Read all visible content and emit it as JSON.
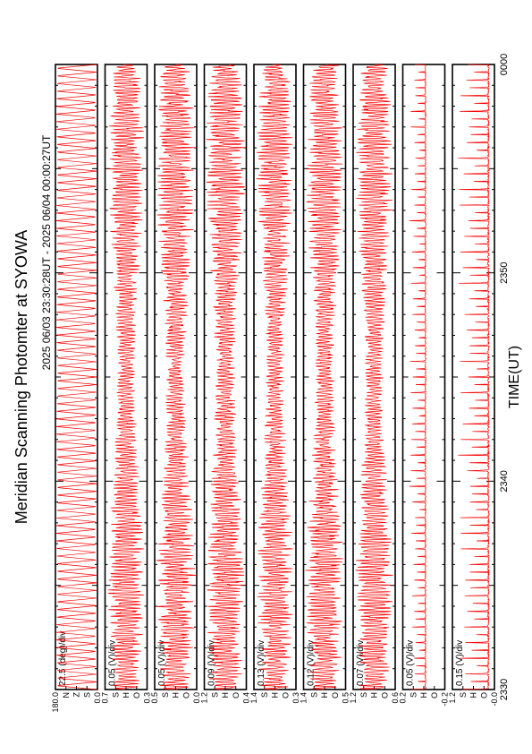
{
  "title": "Meridian Scanning Photomter at SYOWA",
  "time_range": "2025 06/03 23:30:28UT - 2025 06/04 00:00:27UT",
  "xlabel": "TIME(UT)",
  "colors": {
    "trace": "#ff0000",
    "axis": "#000000",
    "background": "#ffffff"
  },
  "chart_data": [
    {
      "type": "line",
      "panel": "scan-angle",
      "scale_label": "22.5 (deg)/div",
      "yticks": [
        "0.0",
        "S",
        "Z",
        "N",
        "180.0"
      ],
      "ylim": [
        0,
        180
      ],
      "x": [
        2330,
        2340,
        2350,
        2400
      ],
      "xticks": [
        "2330",
        "2340",
        "2350",
        "0000"
      ],
      "xlim": [
        2330,
        2400
      ],
      "series": [
        {
          "style": "sawtooth",
          "base": 90,
          "amp": 88,
          "cycles": 82,
          "noise": 0.0
        }
      ]
    },
    {
      "type": "line",
      "panel": "channel-1",
      "scale_label": "0.05 (V)/div",
      "yticks": [
        "0.3",
        "O",
        "H",
        "S",
        "0.7"
      ],
      "ylim": [
        0.3,
        0.7
      ],
      "xticks": [
        "2330",
        "2340",
        "2350",
        "0000"
      ],
      "xlim": [
        2330,
        2400
      ],
      "series": [
        {
          "style": "spiky",
          "base": 0.5,
          "amp": 0.17,
          "cycles": 190,
          "noise": 0.35
        }
      ]
    },
    {
      "type": "line",
      "panel": "channel-2",
      "scale_label": "0.05 (V)/div",
      "yticks": [
        "0.0",
        "O",
        "H",
        "S",
        "0.5"
      ],
      "ylim": [
        0.0,
        0.5
      ],
      "xticks": [
        "2330",
        "2340",
        "2350",
        "0000"
      ],
      "xlim": [
        2330,
        2400
      ],
      "series": [
        {
          "style": "spiky",
          "base": 0.25,
          "amp": 0.22,
          "cycles": 190,
          "noise": 0.4
        }
      ]
    },
    {
      "type": "line",
      "panel": "channel-3",
      "scale_label": "0.09 (V)/div",
      "yticks": [
        "0.4",
        "O",
        "H",
        "S",
        "1.2"
      ],
      "ylim": [
        0.4,
        1.2
      ],
      "xticks": [
        "2330",
        "2340",
        "2350",
        "0000"
      ],
      "xlim": [
        2330,
        2400
      ],
      "series": [
        {
          "style": "spiky",
          "base": 0.8,
          "amp": 0.36,
          "cycles": 190,
          "noise": 0.4
        }
      ]
    },
    {
      "type": "line",
      "panel": "channel-4",
      "scale_label": "0.13 (V)/div",
      "yticks": [
        "0.3",
        "O",
        "H",
        "S",
        "1.4"
      ],
      "ylim": [
        0.3,
        1.4
      ],
      "xticks": [
        "2330",
        "2340",
        "2350",
        "0000"
      ],
      "xlim": [
        2330,
        2400
      ],
      "series": [
        {
          "style": "spiky",
          "base": 0.85,
          "amp": 0.45,
          "cycles": 190,
          "noise": 0.4
        }
      ]
    },
    {
      "type": "line",
      "panel": "channel-5",
      "scale_label": "0.12 (V)/div",
      "yticks": [
        "0.5",
        "O",
        "H",
        "S",
        "1.4"
      ],
      "ylim": [
        0.5,
        1.4
      ],
      "xticks": [
        "2330",
        "2340",
        "2350",
        "0000"
      ],
      "xlim": [
        2330,
        2400
      ],
      "series": [
        {
          "style": "spiky",
          "base": 0.95,
          "amp": 0.38,
          "cycles": 190,
          "noise": 0.4
        }
      ]
    },
    {
      "type": "line",
      "panel": "channel-6",
      "scale_label": "0.07 (V)/div",
      "yticks": [
        "0.6",
        "O",
        "H",
        "S",
        "1.2"
      ],
      "ylim": [
        0.6,
        1.2
      ],
      "xticks": [
        "2330",
        "2340",
        "2350",
        "0000"
      ],
      "xlim": [
        2330,
        2400
      ],
      "series": [
        {
          "style": "spiky",
          "base": 0.9,
          "amp": 0.26,
          "cycles": 190,
          "noise": 0.35
        }
      ]
    },
    {
      "type": "line",
      "panel": "channel-7",
      "scale_label": "0.05 (V)/div",
      "yticks": [
        "-0.2",
        "O",
        "H",
        "S",
        "0.2"
      ],
      "ylim": [
        -0.2,
        0.2
      ],
      "xticks": [
        "2330",
        "2340",
        "2350",
        "0000"
      ],
      "xlim": [
        2330,
        2400
      ],
      "series": [
        {
          "style": "pulse",
          "base": -0.02,
          "amp": 0.16,
          "cycles": 80,
          "noise": 0.1
        }
      ]
    },
    {
      "type": "line",
      "panel": "channel-8",
      "scale_label": "0.15 (V)/div",
      "yticks": [
        "-0.0",
        "O",
        "H",
        "S",
        "1.2"
      ],
      "ylim": [
        0.0,
        1.2
      ],
      "xticks": [
        "2330",
        "2340",
        "2350",
        "0000"
      ],
      "xlim": [
        2330,
        2400
      ],
      "series": [
        {
          "style": "pulse",
          "base": 0.15,
          "amp": 0.9,
          "cycles": 80,
          "noise": 0.1
        }
      ]
    }
  ]
}
